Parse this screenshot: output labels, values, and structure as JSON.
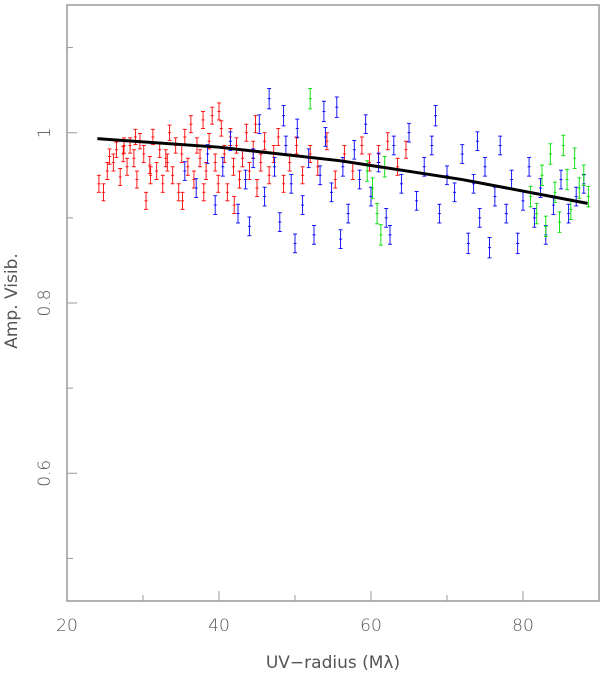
{
  "chart_data": {
    "type": "scatter",
    "title": "",
    "xlabel": "UV−radius (Mλ)",
    "ylabel": "Amp. Visib.",
    "xlim": [
      20,
      90
    ],
    "ylim": [
      0.45,
      1.15
    ],
    "x_ticks": [
      20,
      40,
      60,
      80
    ],
    "x_tick_labels": [
      "20",
      "40",
      "60",
      "80"
    ],
    "x_minor_ticks": [
      30,
      50,
      70
    ],
    "y_ticks": [
      0.6,
      0.8,
      1.0
    ],
    "y_tick_labels": [
      "0.6",
      "0.8",
      "1"
    ],
    "y_minor_ticks": [
      0.5,
      0.7,
      0.9,
      1.1
    ],
    "grid": false,
    "legend": "none",
    "error_bars": true,
    "series": [
      {
        "color": "#ff0000",
        "points": [
          [
            24.2,
            0.94,
            0.01
          ],
          [
            24.8,
            0.93,
            0.01
          ],
          [
            25.3,
            0.955,
            0.01
          ],
          [
            25.6,
            0.972,
            0.009
          ],
          [
            26.1,
            0.965,
            0.01
          ],
          [
            26.5,
            0.98,
            0.009
          ],
          [
            27.0,
            0.948,
            0.01
          ],
          [
            27.4,
            0.975,
            0.009
          ],
          [
            27.9,
            0.96,
            0.01
          ],
          [
            28.3,
            0.985,
            0.009
          ],
          [
            28.8,
            0.97,
            0.01
          ],
          [
            29.2,
            0.945,
            0.01
          ],
          [
            29.6,
            0.99,
            0.009
          ],
          [
            30.1,
            0.975,
            0.01
          ],
          [
            30.4,
            0.92,
            0.01
          ],
          [
            30.9,
            0.962,
            0.01
          ],
          [
            31.3,
            0.995,
            0.009
          ],
          [
            31.8,
            0.955,
            0.01
          ],
          [
            32.2,
            0.98,
            0.009
          ],
          [
            32.6,
            0.94,
            0.01
          ],
          [
            33.0,
            0.97,
            0.01
          ],
          [
            33.5,
            1.0,
            0.009
          ],
          [
            33.9,
            0.95,
            0.01
          ],
          [
            34.3,
            0.985,
            0.009
          ],
          [
            34.7,
            0.93,
            0.01
          ],
          [
            35.1,
            0.975,
            0.01
          ],
          [
            35.5,
            0.995,
            0.009
          ],
          [
            35.9,
            0.96,
            0.01
          ],
          [
            36.3,
            1.01,
            0.01
          ],
          [
            36.7,
            0.945,
            0.01
          ],
          [
            37.1,
            0.985,
            0.009
          ],
          [
            37.5,
            0.97,
            0.01
          ],
          [
            37.9,
            1.015,
            0.01
          ],
          [
            38.3,
            0.955,
            0.01
          ],
          [
            38.7,
            0.99,
            0.009
          ],
          [
            39.1,
            1.02,
            0.01
          ],
          [
            39.5,
            0.965,
            0.01
          ],
          [
            39.9,
            0.94,
            0.01
          ],
          [
            40.3,
            1.005,
            0.009
          ],
          [
            40.7,
            0.975,
            0.01
          ],
          [
            41.1,
            0.93,
            0.01
          ],
          [
            41.5,
            0.995,
            0.01
          ],
          [
            41.9,
            0.96,
            0.01
          ],
          [
            42.3,
            0.985,
            0.009
          ],
          [
            42.7,
            0.945,
            0.01
          ],
          [
            43.1,
            0.97,
            0.01
          ],
          [
            43.6,
            1.0,
            0.01
          ],
          [
            44.0,
            0.955,
            0.01
          ],
          [
            44.5,
            0.98,
            0.01
          ],
          [
            45.0,
            0.935,
            0.01
          ],
          [
            45.5,
            0.965,
            0.01
          ],
          [
            46.0,
            0.99,
            0.01
          ],
          [
            46.6,
            0.95,
            0.01
          ],
          [
            47.2,
            0.975,
            0.01
          ],
          [
            47.8,
            0.995,
            0.01
          ],
          [
            48.5,
            0.94,
            0.01
          ],
          [
            49.3,
            0.965,
            0.01
          ],
          [
            50.2,
            0.985,
            0.01
          ],
          [
            51.0,
            0.95,
            0.01
          ],
          [
            52.0,
            0.975,
            0.01
          ],
          [
            53.0,
            0.96,
            0.01
          ],
          [
            54.2,
            0.99,
            0.01
          ],
          [
            55.3,
            0.945,
            0.01
          ],
          [
            56.5,
            0.975,
            0.01
          ],
          [
            57.6,
            0.955,
            0.01
          ],
          [
            58.8,
            0.985,
            0.01
          ],
          [
            59.8,
            0.965,
            0.01
          ],
          [
            61.0,
            0.975,
            0.01
          ],
          [
            62.2,
            0.99,
            0.01
          ],
          [
            63.5,
            0.96,
            0.01
          ],
          [
            64.6,
            0.98,
            0.01
          ],
          [
            35.2,
            0.92,
            0.01
          ],
          [
            38.0,
            0.93,
            0.01
          ],
          [
            42.0,
            0.915,
            0.01
          ],
          [
            29.0,
            0.995,
            0.009
          ],
          [
            27.5,
            0.985,
            0.009
          ],
          [
            44.8,
            1.01,
            0.01
          ],
          [
            40.0,
            1.025,
            0.01
          ],
          [
            33.2,
            0.965,
            0.01
          ],
          [
            31.0,
            0.95,
            0.01
          ]
        ]
      },
      {
        "color": "#0000ff",
        "points": [
          [
            35.5,
            0.955,
            0.011
          ],
          [
            37.0,
            0.935,
            0.011
          ],
          [
            38.5,
            0.975,
            0.011
          ],
          [
            39.5,
            0.915,
            0.011
          ],
          [
            40.5,
            0.96,
            0.011
          ],
          [
            41.5,
            0.99,
            0.011
          ],
          [
            42.5,
            0.905,
            0.011
          ],
          [
            43.5,
            0.945,
            0.011
          ],
          [
            44.5,
            0.97,
            0.011
          ],
          [
            45.3,
            1.01,
            0.011
          ],
          [
            46.0,
            0.925,
            0.011
          ],
          [
            46.6,
            1.04,
            0.012
          ],
          [
            47.3,
            0.96,
            0.011
          ],
          [
            48.0,
            0.895,
            0.011
          ],
          [
            48.8,
            0.985,
            0.011
          ],
          [
            49.5,
            0.94,
            0.011
          ],
          [
            50.3,
            1.005,
            0.011
          ],
          [
            51.0,
            0.915,
            0.011
          ],
          [
            51.8,
            0.97,
            0.011
          ],
          [
            52.5,
            0.88,
            0.011
          ],
          [
            53.3,
            0.95,
            0.011
          ],
          [
            54.0,
            0.995,
            0.011
          ],
          [
            54.8,
            0.93,
            0.011
          ],
          [
            55.5,
            1.03,
            0.012
          ],
          [
            56.3,
            0.96,
            0.011
          ],
          [
            57.0,
            0.905,
            0.011
          ],
          [
            57.8,
            0.98,
            0.011
          ],
          [
            58.5,
            0.945,
            0.011
          ],
          [
            59.3,
            1.01,
            0.011
          ],
          [
            60.0,
            0.925,
            0.011
          ],
          [
            61.0,
            0.965,
            0.011
          ],
          [
            62.0,
            0.9,
            0.011
          ],
          [
            63.0,
            0.985,
            0.011
          ],
          [
            64.0,
            0.94,
            0.011
          ],
          [
            65.0,
            1.0,
            0.011
          ],
          [
            66.0,
            0.92,
            0.011
          ],
          [
            67.0,
            0.96,
            0.011
          ],
          [
            68.0,
            0.985,
            0.011
          ],
          [
            69.0,
            0.905,
            0.011
          ],
          [
            70.0,
            0.95,
            0.011
          ],
          [
            71.0,
            0.93,
            0.011
          ],
          [
            72.0,
            0.975,
            0.011
          ],
          [
            72.8,
            0.87,
            0.012
          ],
          [
            73.5,
            0.94,
            0.011
          ],
          [
            74.3,
            0.9,
            0.011
          ],
          [
            75.0,
            0.96,
            0.011
          ],
          [
            75.6,
            0.865,
            0.012
          ],
          [
            76.3,
            0.925,
            0.011
          ],
          [
            77.0,
            0.985,
            0.011
          ],
          [
            77.8,
            0.905,
            0.011
          ],
          [
            78.5,
            0.945,
            0.011
          ],
          [
            79.3,
            0.87,
            0.012
          ],
          [
            80.0,
            0.92,
            0.011
          ],
          [
            80.8,
            0.96,
            0.011
          ],
          [
            81.5,
            0.9,
            0.011
          ],
          [
            82.3,
            0.935,
            0.011
          ],
          [
            83.0,
            0.88,
            0.011
          ],
          [
            84.0,
            0.915,
            0.011
          ],
          [
            85.0,
            0.945,
            0.011
          ],
          [
            86.0,
            0.905,
            0.011
          ],
          [
            87.0,
            0.925,
            0.011
          ],
          [
            88.0,
            0.94,
            0.011
          ],
          [
            44.0,
            0.89,
            0.011
          ],
          [
            50.0,
            0.87,
            0.011
          ],
          [
            56.0,
            0.875,
            0.011
          ],
          [
            62.5,
            0.88,
            0.011
          ],
          [
            68.5,
            1.02,
            0.012
          ],
          [
            74.0,
            0.99,
            0.011
          ],
          [
            48.5,
            1.02,
            0.012
          ],
          [
            53.8,
            1.025,
            0.012
          ]
        ]
      },
      {
        "color": "#00dd00",
        "points": [
          [
            52.0,
            1.04,
            0.012
          ],
          [
            59.5,
            0.955,
            0.012
          ],
          [
            60.2,
            0.935,
            0.012
          ],
          [
            60.8,
            0.905,
            0.012
          ],
          [
            61.3,
            0.88,
            0.012
          ],
          [
            61.8,
            0.96,
            0.012
          ],
          [
            81.0,
            0.925,
            0.012
          ],
          [
            81.8,
            0.905,
            0.012
          ],
          [
            82.5,
            0.95,
            0.012
          ],
          [
            83.0,
            0.89,
            0.012
          ],
          [
            83.6,
            0.975,
            0.012
          ],
          [
            84.2,
            0.93,
            0.012
          ],
          [
            84.8,
            0.895,
            0.012
          ],
          [
            85.3,
            0.985,
            0.012
          ],
          [
            85.8,
            0.945,
            0.012
          ],
          [
            86.3,
            0.91,
            0.012
          ],
          [
            86.8,
            0.97,
            0.012
          ],
          [
            87.4,
            0.935,
            0.012
          ],
          [
            88.0,
            0.95,
            0.012
          ],
          [
            88.6,
            0.925,
            0.012
          ]
        ]
      }
    ],
    "fit_line": {
      "color": "#000000",
      "x": [
        24,
        40,
        56,
        72,
        88.5
      ],
      "y": [
        0.993,
        0.983,
        0.967,
        0.945,
        0.917
      ]
    }
  }
}
